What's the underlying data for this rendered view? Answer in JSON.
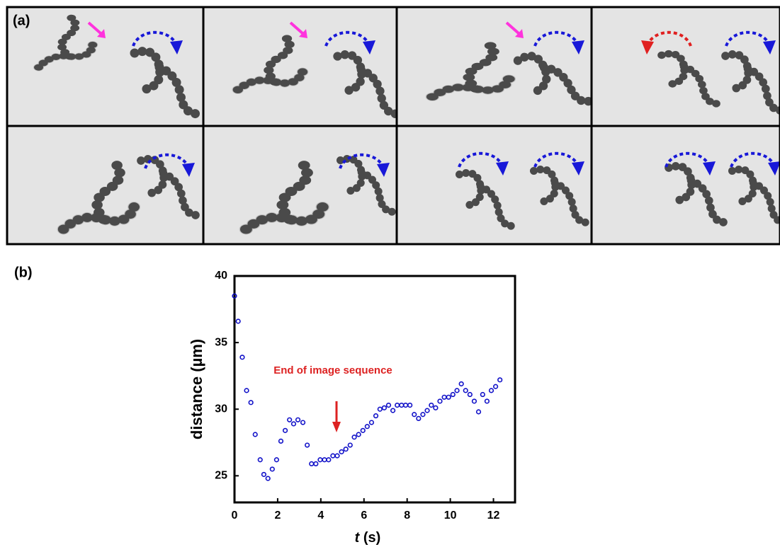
{
  "panel_labels": [
    "(a)",
    "(b)"
  ],
  "chart_data": {
    "type": "scatter",
    "x_label_var": "t",
    "x_label_unit": "(s)",
    "y_label": "distance (µm)",
    "annotation": "End of image sequence",
    "annotation_color": "#dd2222",
    "color": "#1010c8",
    "x": [
      0,
      0.17,
      0.36,
      0.56,
      0.76,
      0.96,
      1.19,
      1.36,
      1.55,
      1.75,
      1.95,
      2.15,
      2.35,
      2.55,
      2.74,
      2.94,
      3.17,
      3.37,
      3.57,
      3.77,
      3.97,
      4.17,
      4.36,
      4.56,
      4.76,
      4.96,
      5.16,
      5.36,
      5.55,
      5.75,
      5.95,
      6.15,
      6.35,
      6.55,
      6.74,
      6.94,
      7.14,
      7.34,
      7.54,
      7.74,
      7.93,
      8.13,
      8.33,
      8.53,
      8.73,
      8.93,
      9.12,
      9.32,
      9.52,
      9.72,
      9.92,
      10.12,
      10.31,
      10.51,
      10.71,
      10.91,
      11.11,
      11.31,
      11.5,
      11.7,
      11.9,
      12.1,
      12.3
    ],
    "values": [
      38.5,
      36.6,
      33.9,
      31.4,
      30.5,
      28.1,
      26.2,
      25.1,
      24.8,
      25.5,
      26.2,
      27.6,
      28.4,
      29.2,
      28.9,
      29.2,
      29.0,
      27.3,
      25.9,
      25.9,
      26.2,
      26.2,
      26.2,
      26.5,
      26.5,
      26.8,
      27.0,
      27.3,
      27.9,
      28.1,
      28.4,
      28.7,
      29.0,
      29.5,
      30.0,
      30.1,
      30.3,
      29.9,
      30.3,
      30.3,
      30.3,
      30.3,
      29.6,
      29.3,
      29.6,
      29.9,
      30.3,
      30.1,
      30.6,
      30.9,
      30.9,
      31.1,
      31.4,
      31.9,
      31.4,
      31.1,
      30.6,
      29.8,
      31.1,
      30.6,
      31.4,
      31.7,
      32.2
    ],
    "xlim": [
      0,
      13
    ],
    "ylim": [
      23,
      40
    ],
    "xticks": [
      0,
      2,
      4,
      6,
      8,
      10,
      12
    ],
    "yticks": [
      25,
      30,
      35,
      40
    ]
  }
}
